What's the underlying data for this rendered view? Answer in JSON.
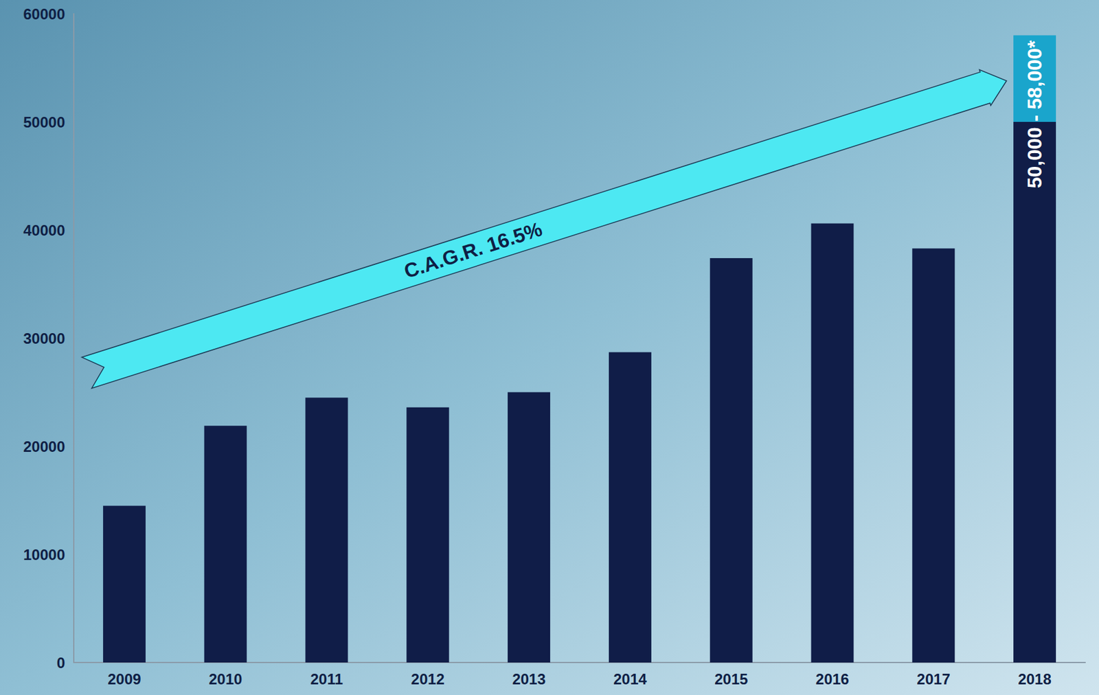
{
  "chart_data": {
    "type": "bar",
    "categories": [
      "2009",
      "2010",
      "2011",
      "2012",
      "2013",
      "2014",
      "2015",
      "2016",
      "2017",
      "2018"
    ],
    "series": [
      {
        "color": "#101d48",
        "values": [
          14500,
          21900,
          24500,
          23600,
          25000,
          28700,
          37400,
          40600,
          38300,
          50000
        ]
      },
      {
        "color": "#1aa5cc",
        "values": [
          null,
          null,
          null,
          null,
          null,
          null,
          null,
          null,
          null,
          8000
        ]
      }
    ],
    "stacked": true,
    "ylim": [
      0,
      60000
    ],
    "yticks": [
      0,
      10000,
      20000,
      30000,
      40000,
      50000,
      60000
    ],
    "grid": false,
    "annotations": [
      {
        "text": "C.A.G.R. 16.5%"
      },
      {
        "text": "50,000 - 58,000*"
      }
    ]
  }
}
